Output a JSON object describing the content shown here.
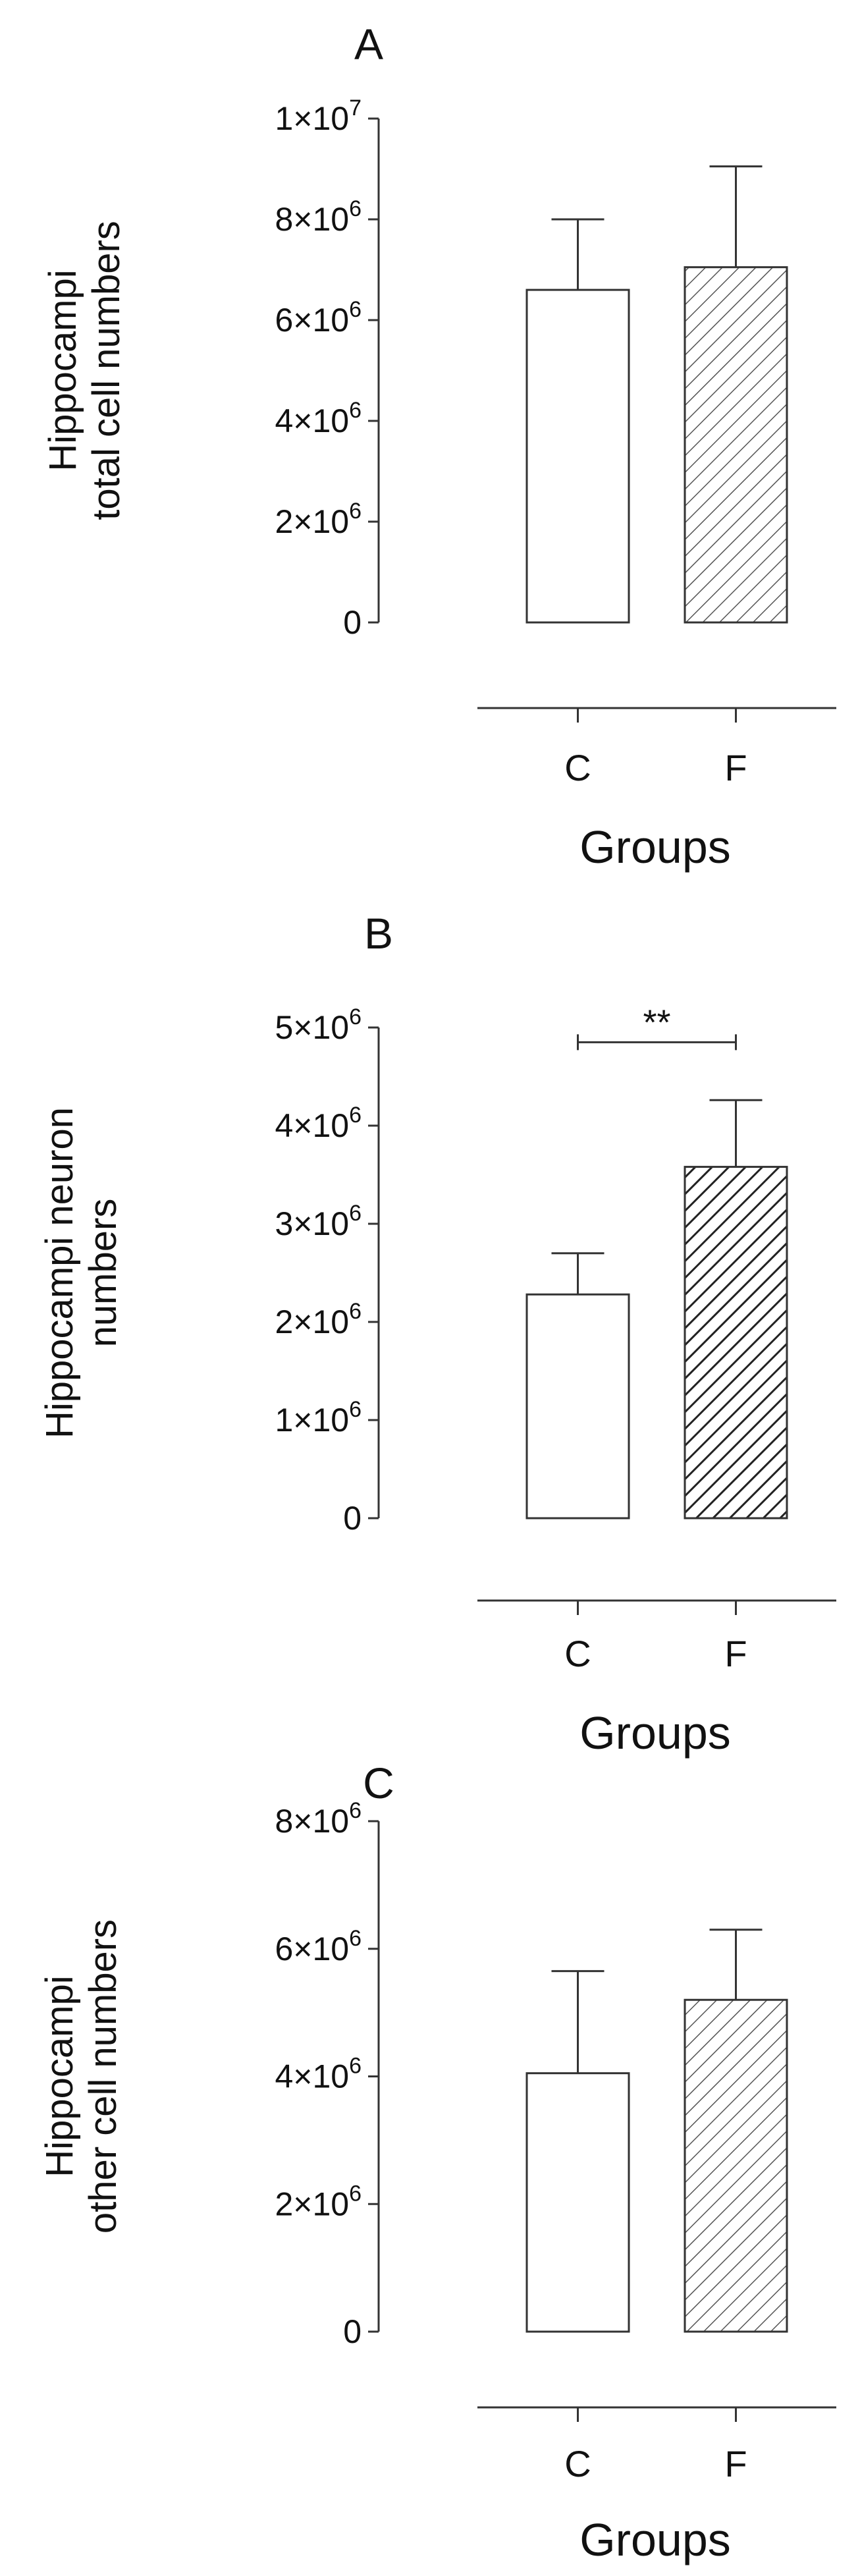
{
  "chart_data": [
    {
      "type": "bar",
      "panel": "A",
      "ylabel": [
        "Hippocampi",
        "total cell numbers"
      ],
      "xlabel": "Groups",
      "categories": [
        "C",
        "F"
      ],
      "values": [
        6600000,
        7050000
      ],
      "errors": [
        1400000,
        2000000
      ],
      "ylim": [
        0,
        10000000
      ],
      "yticks": [
        {
          "value": 0,
          "mant": "0",
          "exp": ""
        },
        {
          "value": 2000000,
          "mant": "2×10",
          "exp": "6"
        },
        {
          "value": 4000000,
          "mant": "4×10",
          "exp": "6"
        },
        {
          "value": 6000000,
          "mant": "6×10",
          "exp": "6"
        },
        {
          "value": 8000000,
          "mant": "8×10",
          "exp": "6"
        },
        {
          "value": 10000000,
          "mant": "1×10",
          "exp": "7"
        }
      ],
      "fills": [
        "white",
        "hatch-light"
      ],
      "significance": null
    },
    {
      "type": "bar",
      "panel": "B",
      "ylabel": [
        "Hippocampi neuron",
        "numbers"
      ],
      "xlabel": "Groups",
      "categories": [
        "C",
        "F"
      ],
      "values": [
        2280000,
        3580000
      ],
      "errors": [
        420000,
        680000
      ],
      "ylim": [
        0,
        5000000
      ],
      "yticks": [
        {
          "value": 0,
          "mant": "0",
          "exp": ""
        },
        {
          "value": 1000000,
          "mant": "1×10",
          "exp": "6"
        },
        {
          "value": 2000000,
          "mant": "2×10",
          "exp": "6"
        },
        {
          "value": 3000000,
          "mant": "3×10",
          "exp": "6"
        },
        {
          "value": 4000000,
          "mant": "4×10",
          "exp": "6"
        },
        {
          "value": 5000000,
          "mant": "5×10",
          "exp": "6"
        }
      ],
      "fills": [
        "white",
        "hatch-dark"
      ],
      "significance": {
        "label": "**",
        "y": 4850000
      }
    },
    {
      "type": "bar",
      "panel": "C",
      "ylabel": [
        "Hippocampi",
        "other cell numbers"
      ],
      "xlabel": "Groups",
      "categories": [
        "C",
        "F"
      ],
      "values": [
        4050000,
        5200000
      ],
      "errors": [
        1600000,
        1100000
      ],
      "ylim": [
        0,
        8000000
      ],
      "yticks": [
        {
          "value": 0,
          "mant": "0",
          "exp": ""
        },
        {
          "value": 2000000,
          "mant": "2×10",
          "exp": "6"
        },
        {
          "value": 4000000,
          "mant": "4×10",
          "exp": "6"
        },
        {
          "value": 6000000,
          "mant": "6×10",
          "exp": "6"
        },
        {
          "value": 8000000,
          "mant": "8×10",
          "exp": "6"
        }
      ],
      "fills": [
        "white",
        "hatch-light"
      ],
      "significance": null
    }
  ]
}
